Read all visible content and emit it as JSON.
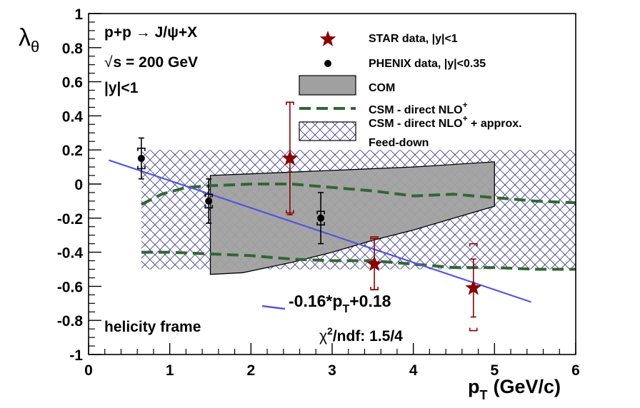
{
  "chart_data": {
    "type": "scatter",
    "ylabel": "λθ",
    "ylabel_main": "λ",
    "ylabel_sub": "θ",
    "xlabel_main": "p",
    "xlabel_sub": "T",
    "xlabel_unit": "(GeV/c)",
    "xlim": [
      0,
      6
    ],
    "ylim": [
      -1,
      1
    ],
    "x_ticks": [
      0,
      1,
      2,
      3,
      4,
      5,
      6
    ],
    "x_tick_labels": [
      "0",
      "1",
      "2",
      "3",
      "4",
      "5",
      "6"
    ],
    "y_ticks": [
      -1,
      -0.8,
      -0.6,
      -0.4,
      -0.2,
      0,
      0.2,
      0.4,
      0.6,
      0.8,
      1
    ],
    "y_tick_labels": [
      "-1",
      "-0.8",
      "-0.6",
      "-0.4",
      "-0.2",
      "0",
      "0.2",
      "0.4",
      "0.6",
      "0.8",
      "1"
    ],
    "grid": false,
    "legend_position": "top-right",
    "annotations": {
      "reaction": "p+p → J/ψ+X",
      "energy_sqrt": "√",
      "energy_rest": "s = 200 GeV",
      "rapidity": "|y|<1",
      "frame": "helicity frame",
      "fit_main": "-0.16*p",
      "fit_sub": "T",
      "fit_tail": "+0.18",
      "chi2_sym": "χ",
      "chi2_sup": "2",
      "chi2_rest": "/ndf: 1.5/4"
    },
    "legend": {
      "star": "STAR data, |y|<1",
      "phenix": "PHENIX data, |y|<0.35",
      "com": "COM",
      "csm_main": "CSM - direct NLO",
      "csm_sup": "+",
      "csm_fd_main": "CSM - direct NLO",
      "csm_fd_sup": "+",
      "csm_fd_tail": " + approx.",
      "csm_fd_line2": "Feed-down"
    },
    "series": [
      {
        "name": "STAR data, |y|<1",
        "color": "#8b0000",
        "marker": "star",
        "points": [
          {
            "x": 2.48,
            "y": 0.15,
            "stat": 0.33,
            "sys": [
              0.32,
              0.33
            ]
          },
          {
            "x": 3.52,
            "y": -0.47,
            "stat": 0.15,
            "sys": [
              0.15,
              0.16
            ]
          },
          {
            "x": 4.74,
            "y": -0.61,
            "stat": 0.17,
            "sys": [
              0.25,
              0.26
            ]
          }
        ]
      },
      {
        "name": "PHENIX data, |y|<0.35",
        "color": "#000000",
        "marker": "circle",
        "points": [
          {
            "x": 0.65,
            "y": 0.15,
            "stat": 0.12,
            "sys": [
              0.06,
              0.06
            ]
          },
          {
            "x": 1.48,
            "y": -0.1,
            "stat": 0.13,
            "sys": [
              0.04,
              0.04
            ]
          },
          {
            "x": 2.86,
            "y": -0.2,
            "stat": 0.15,
            "sys": [
              0.04,
              0.04
            ]
          }
        ]
      },
      {
        "name": "COM",
        "type": "band",
        "color": "#a0a0a0",
        "upper": [
          [
            1.5,
            0.05
          ],
          [
            2.0,
            0.06
          ],
          [
            3.0,
            0.08
          ],
          [
            4.0,
            0.1
          ],
          [
            5.0,
            0.13
          ]
        ],
        "lower": [
          [
            1.5,
            -0.53
          ],
          [
            1.9,
            -0.52
          ],
          [
            2.5,
            -0.46
          ],
          [
            3.0,
            -0.4
          ],
          [
            3.5,
            -0.33
          ],
          [
            4.0,
            -0.27
          ],
          [
            4.5,
            -0.2
          ],
          [
            5.0,
            -0.13
          ]
        ]
      },
      {
        "name": "CSM - direct NLO+",
        "type": "band-dashed",
        "color": "#336633",
        "upper": [
          [
            0.65,
            -0.12
          ],
          [
            0.9,
            -0.06
          ],
          [
            1.2,
            -0.02
          ],
          [
            1.5,
            -0.01
          ],
          [
            2.0,
            0.0
          ],
          [
            2.5,
            0.0
          ],
          [
            3.0,
            -0.02
          ],
          [
            3.5,
            -0.04
          ],
          [
            4.0,
            -0.07
          ],
          [
            4.5,
            -0.06
          ],
          [
            5.0,
            -0.08
          ],
          [
            5.5,
            -0.1
          ],
          [
            6.0,
            -0.11
          ]
        ],
        "lower": [
          [
            0.65,
            -0.4
          ],
          [
            1.0,
            -0.4
          ],
          [
            1.5,
            -0.41
          ],
          [
            2.0,
            -0.42
          ],
          [
            2.5,
            -0.44
          ],
          [
            3.0,
            -0.45
          ],
          [
            3.5,
            -0.45
          ],
          [
            4.0,
            -0.47
          ],
          [
            4.5,
            -0.49
          ],
          [
            5.0,
            -0.49
          ],
          [
            5.5,
            -0.5
          ],
          [
            6.0,
            -0.5
          ]
        ]
      },
      {
        "name": "CSM - direct NLO+ + approx. Feed-down",
        "type": "band-hatched",
        "color": "#3a3a8a",
        "x_range": [
          0.65,
          6.0
        ],
        "upper": 0.2,
        "lower": -0.5
      },
      {
        "name": "-0.16*pT+0.18",
        "type": "line",
        "color": "#5555dd",
        "slope": -0.16,
        "intercept": 0.18,
        "x_range": [
          0.25,
          5.45
        ]
      }
    ]
  }
}
